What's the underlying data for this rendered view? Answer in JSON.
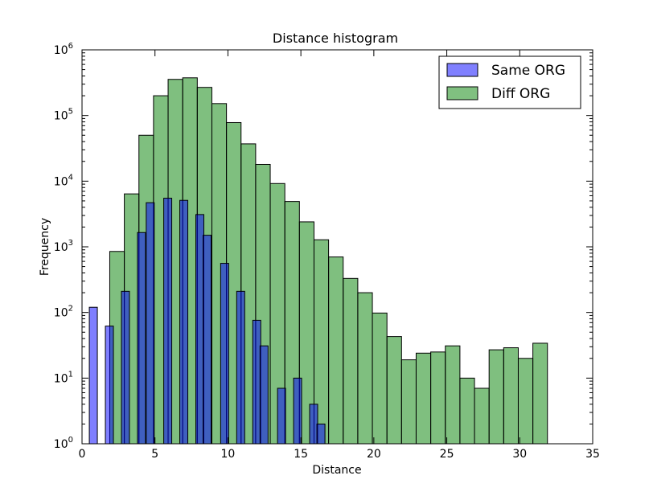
{
  "chart_data": {
    "type": "bar",
    "title": "Distance histogram",
    "xlabel": "Distance",
    "ylabel": "Frequency",
    "xlim": [
      0,
      35
    ],
    "ylim": [
      1,
      1000000
    ],
    "yscale": "log",
    "grid": false,
    "legend_position": "top-right",
    "x_ticks": [
      "0",
      "5",
      "10",
      "15",
      "20",
      "25",
      "30",
      "35"
    ],
    "y_ticks": [
      {
        "base": "10",
        "exp": "0"
      },
      {
        "base": "10",
        "exp": "1"
      },
      {
        "base": "10",
        "exp": "2"
      },
      {
        "base": "10",
        "exp": "3"
      },
      {
        "base": "10",
        "exp": "4"
      },
      {
        "base": "10",
        "exp": "5"
      },
      {
        "base": "10",
        "exp": "6"
      }
    ],
    "series": [
      {
        "name": "Same ORG",
        "color": "#8080ff",
        "bin_width": 0.55,
        "bins": [
          {
            "x": 0.5,
            "value": 120
          },
          {
            "x": 1.6,
            "value": 62
          },
          {
            "x": 2.7,
            "value": 210
          },
          {
            "x": 3.8,
            "value": 1650
          },
          {
            "x": 4.4,
            "value": 4700
          },
          {
            "x": 5.6,
            "value": 5500
          },
          {
            "x": 6.7,
            "value": 5100
          },
          {
            "x": 7.8,
            "value": 3100
          },
          {
            "x": 8.3,
            "value": 1500
          },
          {
            "x": 9.5,
            "value": 560
          },
          {
            "x": 10.6,
            "value": 210
          },
          {
            "x": 11.7,
            "value": 76
          },
          {
            "x": 12.2,
            "value": 31
          },
          {
            "x": 13.4,
            "value": 7
          },
          {
            "x": 14.5,
            "value": 10
          },
          {
            "x": 15.6,
            "value": 4
          },
          {
            "x": 16.1,
            "value": 2
          }
        ]
      },
      {
        "name": "Diff ORG",
        "color": "#80c080",
        "bin_width": 1.0,
        "bins": [
          {
            "x": 1.9,
            "value": 850
          },
          {
            "x": 2.9,
            "value": 6400
          },
          {
            "x": 3.9,
            "value": 50000
          },
          {
            "x": 4.9,
            "value": 200000
          },
          {
            "x": 5.9,
            "value": 355000
          },
          {
            "x": 6.9,
            "value": 375000
          },
          {
            "x": 7.9,
            "value": 268000
          },
          {
            "x": 8.9,
            "value": 152000
          },
          {
            "x": 9.9,
            "value": 78000
          },
          {
            "x": 10.9,
            "value": 37000
          },
          {
            "x": 11.9,
            "value": 18000
          },
          {
            "x": 12.9,
            "value": 9200
          },
          {
            "x": 13.9,
            "value": 4900
          },
          {
            "x": 14.9,
            "value": 2400
          },
          {
            "x": 15.9,
            "value": 1280
          },
          {
            "x": 16.9,
            "value": 700
          },
          {
            "x": 17.9,
            "value": 330
          },
          {
            "x": 18.9,
            "value": 200
          },
          {
            "x": 19.9,
            "value": 98
          },
          {
            "x": 20.9,
            "value": 43
          },
          {
            "x": 21.9,
            "value": 19
          },
          {
            "x": 22.9,
            "value": 24
          },
          {
            "x": 23.9,
            "value": 25
          },
          {
            "x": 24.9,
            "value": 31
          },
          {
            "x": 25.9,
            "value": 10
          },
          {
            "x": 26.9,
            "value": 7
          },
          {
            "x": 27.9,
            "value": 27
          },
          {
            "x": 28.9,
            "value": 29
          },
          {
            "x": 29.9,
            "value": 20
          },
          {
            "x": 30.9,
            "value": 34
          }
        ]
      }
    ]
  }
}
